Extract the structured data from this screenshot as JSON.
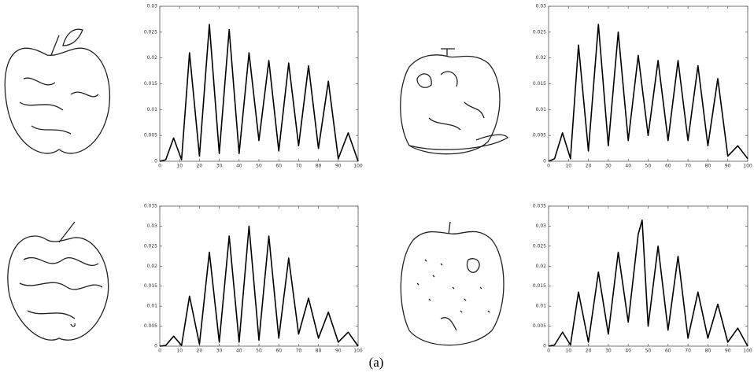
{
  "chart_data": [
    {
      "type": "line",
      "xlim": [
        0,
        100
      ],
      "ylim": [
        0,
        0.03
      ],
      "xticks": [
        0,
        10,
        20,
        30,
        40,
        50,
        60,
        70,
        80,
        90,
        100
      ],
      "yticks": [
        0,
        0.005,
        0.01,
        0.015,
        0.02,
        0.025,
        0.03
      ],
      "x": [
        0,
        3,
        7,
        11,
        15,
        20,
        25,
        30,
        35,
        40,
        45,
        50,
        55,
        60,
        65,
        70,
        75,
        80,
        85,
        90,
        95,
        100
      ],
      "color": "#000000",
      "values": [
        0,
        0.0003,
        0.0045,
        0.0003,
        0.021,
        0.001,
        0.0265,
        0.0015,
        0.0255,
        0.0015,
        0.021,
        0.004,
        0.0195,
        0.002,
        0.019,
        0.003,
        0.0185,
        0.0025,
        0.0155,
        0.0005,
        0.0055,
        0
      ]
    },
    {
      "type": "line",
      "xlim": [
        0,
        100
      ],
      "ylim": [
        0,
        0.03
      ],
      "xticks": [
        0,
        10,
        20,
        30,
        40,
        50,
        60,
        70,
        80,
        90,
        100
      ],
      "yticks": [
        0,
        0.005,
        0.01,
        0.015,
        0.02,
        0.025,
        0.03
      ],
      "x": [
        0,
        3,
        7,
        11,
        15,
        20,
        25,
        30,
        35,
        40,
        45,
        50,
        55,
        60,
        65,
        70,
        75,
        80,
        85,
        90,
        95,
        100
      ],
      "color": "#000000",
      "values": [
        0,
        0.0005,
        0.0055,
        0.0005,
        0.0225,
        0.002,
        0.0265,
        0.003,
        0.025,
        0.004,
        0.0205,
        0.005,
        0.0195,
        0.004,
        0.0195,
        0.004,
        0.0185,
        0.003,
        0.016,
        0.001,
        0.003,
        0.0005
      ]
    },
    {
      "type": "line",
      "xlim": [
        0,
        100
      ],
      "ylim": [
        0,
        0.035
      ],
      "xticks": [
        0,
        10,
        20,
        30,
        40,
        50,
        60,
        70,
        80,
        90,
        100
      ],
      "yticks": [
        0,
        0.005,
        0.01,
        0.015,
        0.02,
        0.025,
        0.03,
        0.035
      ],
      "x": [
        0,
        3,
        7,
        11,
        15,
        20,
        25,
        30,
        35,
        40,
        45,
        50,
        55,
        60,
        65,
        70,
        75,
        80,
        85,
        90,
        95,
        100
      ],
      "color": "#000000",
      "values": [
        0,
        0.0002,
        0.0025,
        0.0002,
        0.0125,
        0.0005,
        0.0235,
        0.001,
        0.0275,
        0.001,
        0.03,
        0.0015,
        0.0275,
        0.002,
        0.022,
        0.003,
        0.012,
        0.002,
        0.0085,
        0.001,
        0.0035,
        0
      ]
    },
    {
      "type": "line",
      "xlim": [
        0,
        100
      ],
      "ylim": [
        0,
        0.035
      ],
      "xticks": [
        0,
        10,
        20,
        30,
        40,
        50,
        60,
        70,
        80,
        90,
        100
      ],
      "yticks": [
        0,
        0.005,
        0.01,
        0.015,
        0.02,
        0.025,
        0.03,
        0.035
      ],
      "x": [
        0,
        3,
        7,
        11,
        15,
        20,
        25,
        30,
        35,
        40,
        45,
        47,
        50,
        55,
        60,
        65,
        70,
        75,
        80,
        85,
        90,
        95,
        100
      ],
      "color": "#000000",
      "values": [
        0,
        0.0003,
        0.0035,
        0.0003,
        0.0135,
        0.001,
        0.0185,
        0.003,
        0.0235,
        0.006,
        0.028,
        0.0315,
        0.005,
        0.025,
        0.004,
        0.0225,
        0.002,
        0.0135,
        0.002,
        0.0105,
        0.001,
        0.0045,
        0
      ]
    }
  ],
  "caption": "(a)"
}
